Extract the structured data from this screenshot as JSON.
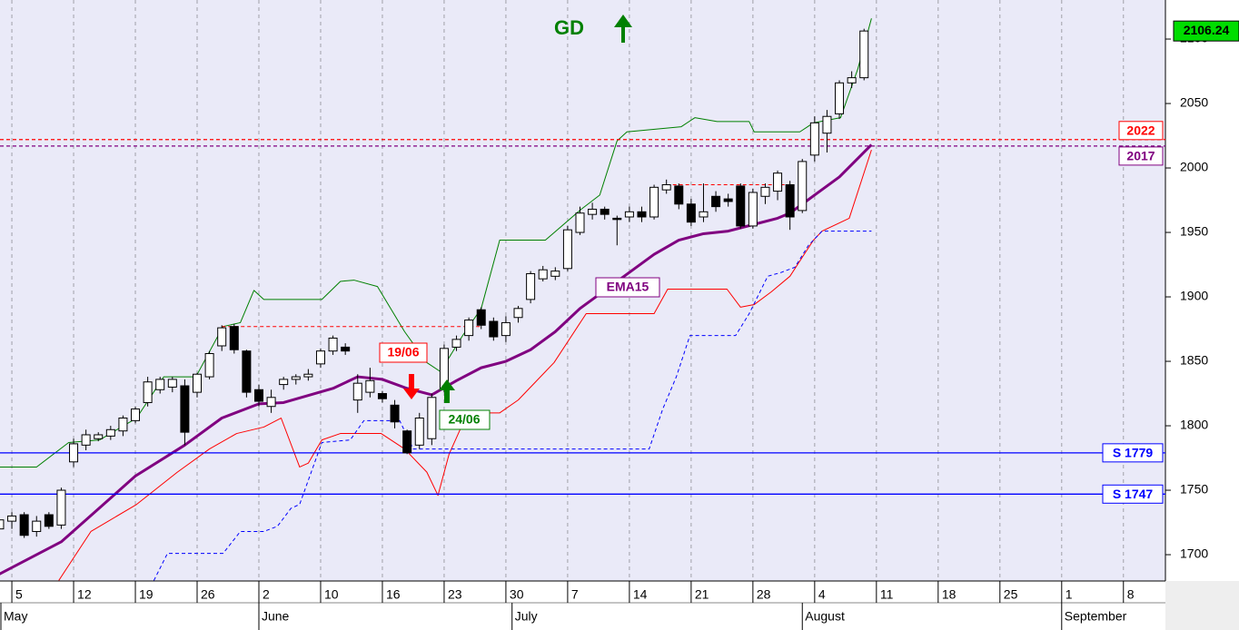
{
  "chart_data": {
    "type": "candlestick",
    "title": "GD",
    "x": [
      -1,
      0,
      1,
      2,
      3,
      4,
      5,
      6,
      7,
      8,
      9,
      10,
      11,
      12,
      13,
      14,
      15,
      16,
      17,
      18,
      19,
      20,
      21,
      22,
      23,
      24,
      25,
      26,
      27,
      28,
      29,
      30,
      31,
      32,
      33,
      34,
      35,
      36,
      37,
      38,
      39,
      40,
      41,
      42,
      43,
      44,
      45,
      46,
      47,
      48,
      49,
      50,
      51,
      52,
      53,
      54,
      55,
      56,
      57,
      58,
      59,
      60,
      61,
      62,
      63,
      64,
      65,
      66,
      67,
      68,
      69
    ],
    "open": [
      1720,
      1726,
      1731,
      1718,
      1731,
      1723,
      1772,
      1785,
      1790,
      1792,
      1796,
      1804,
      1818,
      1828,
      1830,
      1831,
      1826,
      1838,
      1862,
      1877,
      1858,
      1828,
      1815,
      1832,
      1836,
      1838,
      1848,
      1858,
      1861,
      1820,
      1826,
      1825,
      1816,
      1796,
      1785,
      1790,
      1828,
      1861,
      1870,
      1890,
      1881,
      1870,
      1884,
      1898,
      1914,
      1916,
      1922,
      1950,
      1964,
      1968,
      1961,
      1962,
      1966,
      1962,
      1983,
      1986,
      1972,
      1962,
      1978,
      1976,
      1986,
      1955,
      1978,
      1982,
      1987,
      1967,
      2010,
      2027,
      2042,
      2066,
      2070
    ],
    "high": [
      1730,
      1733,
      1733,
      1730,
      1733,
      1752,
      1790,
      1797,
      1795,
      1800,
      1808,
      1815,
      1838,
      1838,
      1838,
      1836,
      1841,
      1858,
      1878,
      1879,
      1859,
      1832,
      1828,
      1838,
      1840,
      1844,
      1860,
      1870,
      1864,
      1840,
      1845,
      1827,
      1820,
      1797,
      1810,
      1825,
      1863,
      1870,
      1884,
      1892,
      1884,
      1885,
      1893,
      1920,
      1924,
      1923,
      1955,
      1970,
      1973,
      1970,
      1963,
      1970,
      1970,
      1987,
      1991,
      1988,
      1976,
      1988,
      1982,
      1980,
      1988,
      1984,
      1988,
      1998,
      1990,
      2007,
      2040,
      2045,
      2068,
      2075,
      2108
    ],
    "low": [
      1716,
      1720,
      1713,
      1714,
      1720,
      1720,
      1768,
      1781,
      1788,
      1789,
      1792,
      1802,
      1815,
      1825,
      1826,
      1785,
      1822,
      1836,
      1858,
      1856,
      1822,
      1815,
      1810,
      1828,
      1832,
      1835,
      1845,
      1855,
      1855,
      1810,
      1822,
      1818,
      1798,
      1778,
      1782,
      1785,
      1826,
      1858,
      1866,
      1875,
      1866,
      1865,
      1880,
      1895,
      1912,
      1913,
      1920,
      1948,
      1960,
      1960,
      1940,
      1958,
      1958,
      1960,
      1980,
      1968,
      1955,
      1958,
      1966,
      1970,
      1953,
      1953,
      1972,
      1975,
      1952,
      1965,
      2005,
      2012,
      2038,
      2062,
      2068
    ],
    "close": [
      1727,
      1730,
      1715,
      1726,
      1722,
      1750,
      1786,
      1793,
      1793,
      1797,
      1806,
      1813,
      1834,
      1836,
      1836,
      1795,
      1840,
      1856,
      1876,
      1859,
      1826,
      1819,
      1822,
      1836,
      1838,
      1840,
      1858,
      1868,
      1858,
      1833,
      1835,
      1821,
      1803,
      1779,
      1806,
      1822,
      1860,
      1867,
      1882,
      1878,
      1869,
      1880,
      1891,
      1918,
      1921,
      1920,
      1952,
      1965,
      1968,
      1964,
      1960,
      1966,
      1962,
      1985,
      1987,
      1972,
      1958,
      1966,
      1970,
      1974,
      1955,
      1981,
      1985,
      1996,
      1962,
      2005,
      2035,
      2040,
      2066,
      2070,
      2106.24
    ],
    "up_color": "#ffffff",
    "down_color": "#000000",
    "xlim": [
      -0.96,
      93.4
    ],
    "ylim": [
      1679.6,
      2130.3
    ],
    "yticks": [
      1700,
      1750,
      1800,
      1850,
      1900,
      1950,
      2000,
      2050,
      2100
    ],
    "xticks": [
      {
        "value": 0,
        "label": "5"
      },
      {
        "value": 5,
        "label": "12"
      },
      {
        "value": 10,
        "label": "19"
      },
      {
        "value": 15,
        "label": "26"
      },
      {
        "value": 20,
        "label": "2"
      },
      {
        "value": 25,
        "label": "10"
      },
      {
        "value": 30,
        "label": "16"
      },
      {
        "value": 35,
        "label": "23"
      },
      {
        "value": 40,
        "label": "30"
      },
      {
        "value": 45,
        "label": "7"
      },
      {
        "value": 50,
        "label": "14"
      },
      {
        "value": 55,
        "label": "21"
      },
      {
        "value": 60,
        "label": "28"
      },
      {
        "value": 65,
        "label": "4"
      },
      {
        "value": 70,
        "label": "11"
      },
      {
        "value": 75,
        "label": "18"
      },
      {
        "value": 80,
        "label": "25"
      },
      {
        "value": 85,
        "label": "1"
      },
      {
        "value": 90,
        "label": "8"
      }
    ],
    "month_ticks": [
      {
        "value": -1,
        "label": "May"
      },
      {
        "value": 20,
        "label": "June"
      },
      {
        "value": 40.5,
        "label": "July"
      },
      {
        "value": 64,
        "label": "August"
      },
      {
        "value": 85,
        "label": "September"
      }
    ],
    "grid": true,
    "background": "#eaeaf8",
    "lines": [
      {
        "color": "#800080",
        "width": 3,
        "dashed": false,
        "x": [
          -1,
          4,
          10,
          14,
          17,
          20,
          22,
          26,
          28,
          30,
          32,
          34,
          36,
          38,
          40,
          42,
          44,
          46,
          48,
          50,
          52,
          54,
          56,
          58,
          60,
          62,
          63,
          65,
          67,
          69.6
        ],
        "values": [
          1685,
          1710,
          1761,
          1785,
          1806,
          1817,
          1818,
          1829,
          1838,
          1836,
          1829,
          1824,
          1835,
          1845,
          1850,
          1859,
          1873,
          1891,
          1905,
          1919,
          1933,
          1944,
          1949,
          1951,
          1956,
          1961,
          1965,
          1979,
          1993,
          2018
        ]
      },
      {
        "color": "#008000",
        "width": 1,
        "dashed": false,
        "x": [
          -1,
          2,
          4.6,
          7.1,
          10.1,
          12.3,
          14.9,
          17.1,
          18.5,
          19.6,
          20.4,
          25.1,
          26.6,
          27.7,
          29.6,
          31.8,
          33.6,
          34.7,
          36.5,
          38,
          39.5,
          43.2,
          46.1,
          47.6,
          49,
          49.8,
          54.2,
          55.3,
          57.1,
          59.7,
          60.1,
          63.8,
          64.9,
          67.1,
          68.5,
          69.6
        ],
        "values": [
          1768,
          1768,
          1787,
          1789,
          1806,
          1838,
          1838,
          1877,
          1880,
          1905,
          1898,
          1898,
          1912,
          1913,
          1908,
          1873,
          1849,
          1842,
          1870,
          1891,
          1944,
          1944,
          1968,
          1979,
          2021,
          2028,
          2032,
          2039,
          2036,
          2036,
          2028,
          2028,
          2035,
          2039,
          2077,
          2116
        ]
      },
      {
        "color": "#ff0000",
        "width": 1,
        "dashed": false,
        "x": [
          3.8,
          6.4,
          10.1,
          13.4,
          16,
          18.2,
          20.4,
          21.8,
          23.3,
          24,
          25.1,
          26.6,
          29.9,
          31.8,
          33.6,
          34.5,
          35.4,
          36.9,
          39.5,
          41,
          43.2,
          43.9,
          46.5,
          52,
          53.1,
          57.9,
          59,
          60.1,
          61.5,
          63,
          64.9,
          65.6,
          67.8,
          69.6
        ],
        "values": [
          1680,
          1718,
          1739,
          1764,
          1782,
          1794,
          1799,
          1806,
          1768,
          1771,
          1789,
          1794,
          1794,
          1782,
          1764,
          1746,
          1778,
          1810,
          1810,
          1820,
          1842,
          1849,
          1887,
          1887,
          1906,
          1906,
          1892,
          1894,
          1904,
          1916,
          1944,
          1951,
          1961,
          2014
        ]
      },
      {
        "color": "#0000ff",
        "width": 1,
        "dashed": true,
        "x": [
          11.5,
          12.6,
          17.1,
          18.5,
          20.4,
          21.5,
          22.6,
          23.3,
          25.1,
          27.4,
          28.5,
          31.4,
          32.5,
          51.6,
          52.7,
          53.8,
          54.9,
          58.6,
          59.7,
          61.2,
          62.3,
          63.4,
          64.5,
          65.6,
          69.6
        ],
        "values": [
          1680,
          1701,
          1701,
          1718,
          1718,
          1722,
          1736,
          1739,
          1787,
          1789,
          1804,
          1804,
          1782,
          1782,
          1813,
          1838,
          1870,
          1870,
          1887,
          1916,
          1919,
          1923,
          1940,
          1951,
          1951
        ]
      },
      {
        "color": "#ff0000",
        "width": 1,
        "dashed": true,
        "x": [
          17,
          38
        ],
        "values": [
          1877,
          1877
        ]
      },
      {
        "color": "#ff0000",
        "width": 1,
        "dashed": true,
        "x": [
          53,
          63
        ],
        "values": [
          1987,
          1987
        ]
      }
    ],
    "levels": [
      {
        "value": 2022,
        "color": "#ff0000",
        "dashed": true
      },
      {
        "value": 2017,
        "color": "#800080",
        "dashed": true
      },
      {
        "value": 1779,
        "label": "S 1779",
        "color": "#0000ff",
        "dashed": false
      },
      {
        "value": 1747,
        "label": "S 1747",
        "color": "#0000ff",
        "dashed": false
      }
    ],
    "sell_signal": "19/06",
    "buy_signal": "24/06",
    "ema_label": "EMA15"
  }
}
